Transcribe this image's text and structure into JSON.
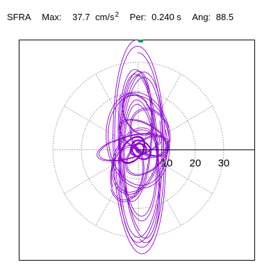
{
  "header": {
    "station": "SFRA",
    "max_label": "Max:",
    "max_value": "37.7",
    "max_unit": "cm/s",
    "max_unit_exp": "2",
    "period_label": "Per:",
    "period_value": "0.240 s",
    "angle_label": "Ang:",
    "angle_value": "88.5"
  },
  "colors": {
    "trace": "#8a00d4",
    "peak_marker": "#009966",
    "grid": "#777777",
    "axis": "#000000",
    "frame": "#000000"
  },
  "chart_data": {
    "type": "line",
    "plot_kind": "polar particle-motion (acceleration hodogram)",
    "radial_ticks": [
      "10",
      "20",
      "30"
    ],
    "radial_tick_values": [
      10,
      20,
      30
    ],
    "rings": [
      10,
      20,
      30
    ],
    "radial_spokes_deg": [
      0,
      30,
      60,
      90,
      120,
      150,
      180,
      210,
      240,
      270,
      300,
      330
    ],
    "x_range": [
      -42,
      41
    ],
    "y_range": [
      -38,
      37.8
    ],
    "peak": {
      "x": 0.8,
      "y": 37.7,
      "magnitude": 37.7,
      "angle_deg": 88.5
    },
    "loops": [
      {
        "cx": 0.5,
        "cy": 0.5,
        "rx": 9.5,
        "ry": 37.3,
        "rot": 1.5,
        "ph": 90,
        "n": 2
      },
      {
        "cx": 1.0,
        "cy": -3.0,
        "rx": 8.0,
        "ry": 30.0,
        "rot": -2,
        "ph": 30,
        "n": 2
      },
      {
        "cx": 0.0,
        "cy": 2.0,
        "rx": 7.0,
        "ry": 27.0,
        "rot": 3,
        "ph": 140,
        "n": 2
      },
      {
        "cx": -1.0,
        "cy": 5.0,
        "rx": 6.0,
        "ry": 23.0,
        "rot": -3,
        "ph": 200,
        "n": 2
      },
      {
        "cx": 1.0,
        "cy": -7.0,
        "rx": 6.5,
        "ry": 25.0,
        "rot": 4,
        "ph": 250,
        "n": 2
      },
      {
        "cx": 0.0,
        "cy": 3.0,
        "rx": 11.5,
        "ry": 17.0,
        "rot": 8,
        "ph": 10,
        "n": 2
      },
      {
        "cx": 2.0,
        "cy": 4.0,
        "rx": 10.0,
        "ry": 5.0,
        "rot": -30,
        "ph": 60,
        "n": 2
      },
      {
        "cx": -3.0,
        "cy": 1.0,
        "rx": 12.0,
        "ry": 4.0,
        "rot": 15,
        "ph": 120,
        "n": 2
      },
      {
        "cx": 3.0,
        "cy": -2.0,
        "rx": 9.0,
        "ry": 5.5,
        "rot": 40,
        "ph": 300,
        "n": 2
      },
      {
        "cx": -1.0,
        "cy": -4.0,
        "rx": 8.0,
        "ry": 12.0,
        "rot": -20,
        "ph": 80,
        "n": 2
      },
      {
        "cx": 4.0,
        "cy": 6.0,
        "rx": 7.0,
        "ry": 9.0,
        "rot": 25,
        "ph": 170,
        "n": 2
      },
      {
        "cx": -4.0,
        "cy": -8.0,
        "rx": 6.0,
        "ry": 10.0,
        "rot": -10,
        "ph": 220,
        "n": 2
      },
      {
        "cx": 0.0,
        "cy": 12.0,
        "rx": 5.0,
        "ry": 8.0,
        "rot": 30,
        "ph": 15,
        "n": 2
      },
      {
        "cx": -2.0,
        "cy": 0.0,
        "rx": 5.5,
        "ry": 3.5,
        "rot": 50,
        "ph": 100,
        "n": 4
      },
      {
        "cx": 1.0,
        "cy": 0.0,
        "rx": 4.0,
        "ry": 3.0,
        "rot": -40,
        "ph": 45,
        "n": 4
      },
      {
        "cx": 0.0,
        "cy": 0.0,
        "rx": 3.0,
        "ry": 2.2,
        "rot": 10,
        "ph": 180,
        "n": 5
      },
      {
        "cx": 0.5,
        "cy": 0.5,
        "rx": 2.0,
        "ry": 1.5,
        "rot": -60,
        "ph": 270,
        "n": 5
      }
    ]
  }
}
